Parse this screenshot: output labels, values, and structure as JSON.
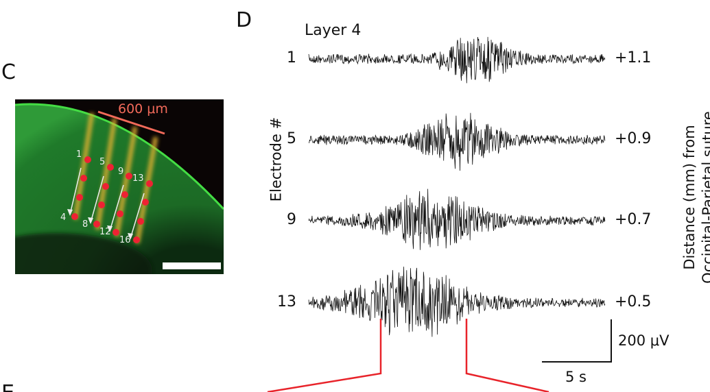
{
  "panels": {
    "c": "C",
    "d": "D",
    "e": "E"
  },
  "micrograph": {
    "scale_label": "600 μm",
    "electrode_labels": [
      "1",
      "5",
      "9",
      "13",
      "4",
      "8",
      "12",
      "16"
    ],
    "colors": {
      "tissue": "#1f7a2a",
      "dye": "#f2c040",
      "electrode": "#ee2233",
      "scale": "#f26a5a"
    }
  },
  "traces": {
    "title": "Layer 4",
    "ylabel": "Electrode #",
    "right_label_line1": "Distance (mm) from",
    "right_label_line2": "Occipital-Parietal suture",
    "rows": [
      {
        "electrode": "1",
        "distance": "+1.1"
      },
      {
        "electrode": "5",
        "distance": "+0.9"
      },
      {
        "electrode": "9",
        "distance": "+0.7"
      },
      {
        "electrode": "13",
        "distance": "+0.5"
      }
    ],
    "scalebar_v": "200 μV",
    "scalebar_h": "5 s",
    "highlight_color": "#e8232a"
  }
}
